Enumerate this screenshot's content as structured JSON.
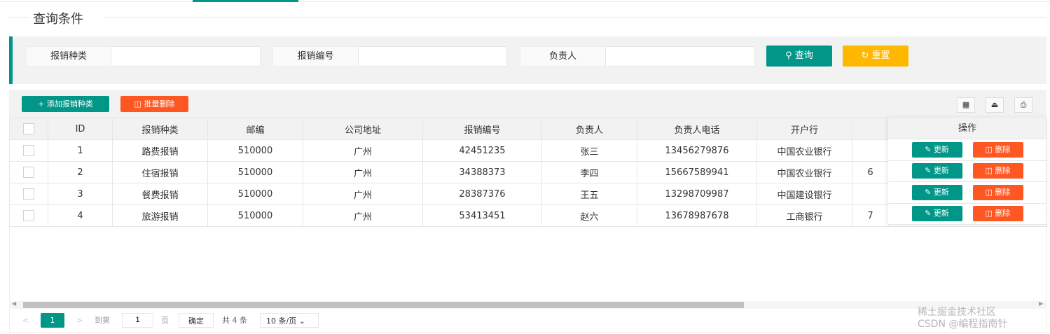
{
  "title": "查询条件",
  "search": {
    "fields": [
      {
        "label": "报销种类",
        "value": ""
      },
      {
        "label": "报销编号",
        "value": ""
      },
      {
        "label": "负责人",
        "value": ""
      }
    ],
    "query_label": "查询",
    "reset_label": "重置"
  },
  "toolbar": {
    "add_label": "添加报销种类",
    "batch_delete_label": "批量删除",
    "icons": [
      "columns-icon",
      "export-icon",
      "print-icon"
    ]
  },
  "table": {
    "headers": [
      "ID",
      "报销种类",
      "邮编",
      "公司地址",
      "报销编号",
      "负责人",
      "负责人电话",
      "开户行",
      "",
      "操作"
    ],
    "rows": [
      [
        "1",
        "路费报销",
        "510000",
        "广州",
        "42451235",
        "张三",
        "13456279876",
        "中国农业银行",
        ""
      ],
      [
        "2",
        "住宿报销",
        "510000",
        "广州",
        "34388373",
        "李四",
        "15667589941",
        "中国农业银行",
        "6"
      ],
      [
        "3",
        "餐费报销",
        "510000",
        "广州",
        "28387376",
        "王五",
        "13298709987",
        "中国建设银行",
        ""
      ],
      [
        "4",
        "旅游报销",
        "510000",
        "广州",
        "53413451",
        "赵六",
        "13678987678",
        "工商银行",
        "7"
      ]
    ],
    "update_label": "更新",
    "delete_label": "删除"
  },
  "pager": {
    "prev": "<",
    "current": "1",
    "next": ">",
    "goto_label": "到第",
    "goto_value": "1",
    "page_unit": "页",
    "confirm": "确定",
    "total": "共 4 条",
    "page_size": "10 条/页"
  },
  "watermark": "稀土掘金技术社区\nCSDN @编程指南针",
  "colors": {
    "primary": "#009688",
    "warm": "#FFB800",
    "danger": "#FF5722"
  }
}
